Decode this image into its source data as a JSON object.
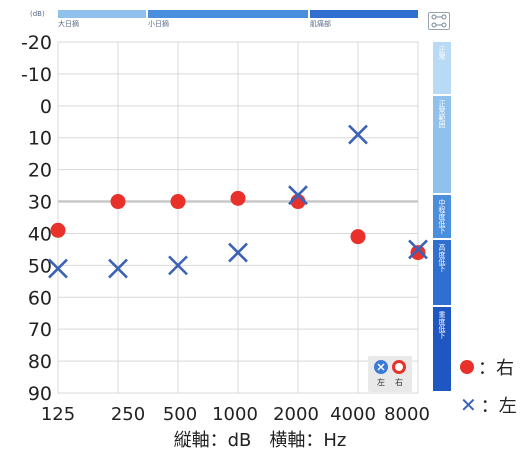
{
  "chart_data": {
    "type": "scatter",
    "x_categories": [
      "125",
      "250",
      "500",
      "1000",
      "2000",
      "4000",
      "8000"
    ],
    "y_ticks": [
      "-20",
      "-10",
      "0",
      "10",
      "20",
      "30",
      "40",
      "50",
      "60",
      "70",
      "80",
      "90"
    ],
    "ylim": [
      -20,
      90
    ],
    "y_inverted": true,
    "reference_line_y": 30,
    "series": [
      {
        "name": "右",
        "marker": "circle",
        "color": "#e8312a",
        "values": [
          39,
          30,
          30,
          29,
          30,
          41,
          46
        ]
      },
      {
        "name": "左",
        "marker": "cross",
        "color": "#3b62b8",
        "values": [
          51,
          51,
          50,
          46,
          28,
          9,
          45
        ]
      }
    ],
    "legend": [
      {
        "symbol": "circle",
        "label": "：右"
      },
      {
        "symbol": "cross",
        "label": "：左"
      }
    ],
    "axis_caption": "縦軸：dB　横軸：Hz"
  },
  "topbar": {
    "db_tag": "(dB)",
    "segments": [
      {
        "label": "大日摘",
        "color": "#8fc1ec"
      },
      {
        "label": "小日摘",
        "color": "#4a8fde"
      },
      {
        "label": "肌痛部",
        "color": "#2f6fd0"
      }
    ]
  },
  "sidebar": {
    "bands": [
      {
        "label": "正常",
        "color": "#b8daf5"
      },
      {
        "label": "正常範囲",
        "color": "#8fc1ec"
      },
      {
        "label": "中程度低下",
        "color": "#4a8fde"
      },
      {
        "label": "高度低下",
        "color": "#2f6fd0"
      },
      {
        "label": "重度低下",
        "color": "#1f57c2"
      }
    ]
  },
  "ear_icons": {
    "left_label": "左",
    "right_label": "右"
  },
  "colors": {
    "grid": "#d9d9d9",
    "ref_line": "#c8c8c8",
    "right": "#e8312a",
    "left": "#3b62b8"
  }
}
